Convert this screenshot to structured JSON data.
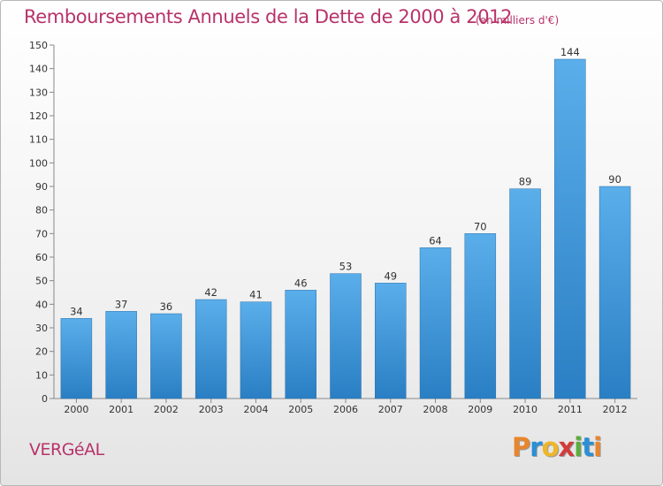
{
  "title": "Remboursements Annuels de la Dette de 2000 à 2012",
  "subtitle": "(en milliers d'€)",
  "commune": "VERGéAL",
  "logo": {
    "text": "Proxiti",
    "letter_colors": [
      "#e8862c",
      "#2b8fd6",
      "#f0b62a",
      "#d23c3c",
      "#5cae3c",
      "#2b8fd6",
      "#e8862c"
    ]
  },
  "chart_data": {
    "type": "bar",
    "categories": [
      "2000",
      "2001",
      "2002",
      "2003",
      "2004",
      "2005",
      "2006",
      "2007",
      "2008",
      "2009",
      "2010",
      "2011",
      "2012"
    ],
    "values": [
      34,
      37,
      36,
      42,
      41,
      46,
      53,
      49,
      64,
      70,
      89,
      144,
      90
    ],
    "ylim": [
      0,
      150
    ],
    "yticks": [
      0,
      10,
      20,
      30,
      40,
      50,
      60,
      70,
      80,
      90,
      100,
      110,
      120,
      130,
      140,
      150
    ],
    "grid": false,
    "bar_color": "#3f95d8",
    "data_labels": true
  }
}
